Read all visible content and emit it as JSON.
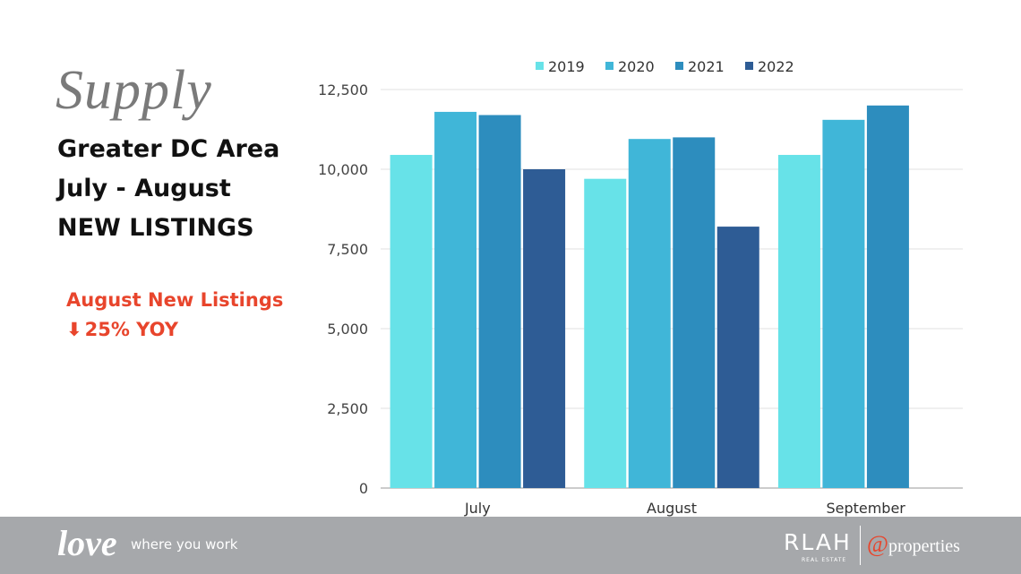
{
  "slide": {
    "supply_label": "Supply",
    "heading_lines": [
      "Greater DC Area",
      "July - August",
      "NEW LISTINGS"
    ],
    "callout_line1": "August New Listings",
    "callout_arrow": "⬇",
    "callout_line2": "25% YOY",
    "accent_color": "#e8452c"
  },
  "footer": {
    "love_text": "love",
    "tagline": "where you work",
    "rlah_logo": "RLAH",
    "rlah_sub": "REAL ESTATE",
    "properties_at": "@",
    "properties_text": "properties"
  },
  "chart_data": {
    "type": "bar",
    "categories": [
      "July",
      "August",
      "September"
    ],
    "series": [
      {
        "name": "2019",
        "values": [
          10450,
          9700,
          10450
        ],
        "color": "#67e2e8"
      },
      {
        "name": "2020",
        "values": [
          11800,
          10950,
          11550
        ],
        "color": "#40b6d8"
      },
      {
        "name": "2021",
        "values": [
          11700,
          11000,
          12000
        ],
        "color": "#2d8dbe"
      },
      {
        "name": "2022",
        "values": [
          10000,
          8200,
          null
        ],
        "color": "#2e5c95"
      }
    ],
    "yticks": [
      "0",
      "2,500",
      "5,000",
      "7,500",
      "10,000",
      "12,500"
    ],
    "ytick_values": [
      0,
      2500,
      5000,
      7500,
      10000,
      12500
    ],
    "ylim": [
      0,
      12500
    ],
    "grid": true,
    "legend_position": "top"
  }
}
